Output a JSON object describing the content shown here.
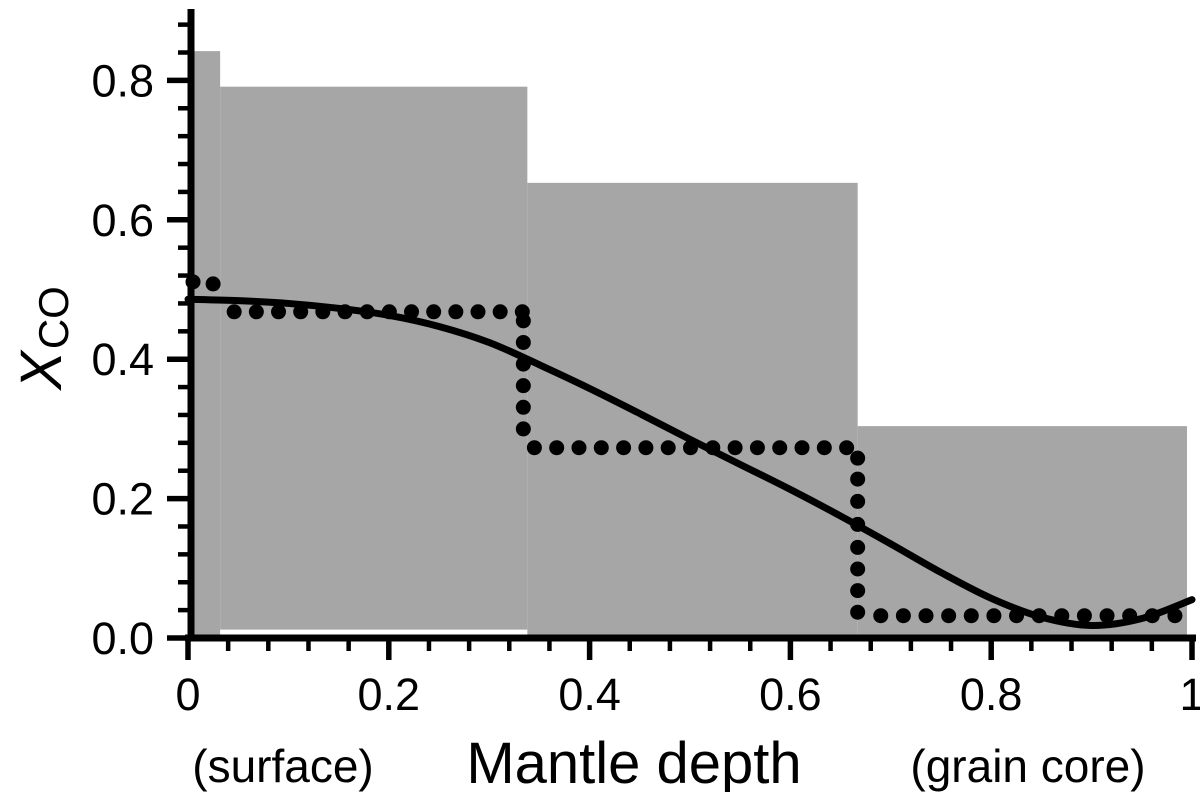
{
  "figure": {
    "background": "#ffffff",
    "colors": {
      "envelope_fill": "#a6a6a6",
      "curve": "#000000",
      "dots": "#000000",
      "axis": "#000000",
      "text": "#000000"
    }
  },
  "chart_data": {
    "type": "composite",
    "title": "",
    "xlabel": "Mantle depth",
    "xlabel_sub_left": "(surface)",
    "xlabel_sub_right": "(grain core)",
    "ylabel": "X_CO",
    "ylabel_main": "X",
    "ylabel_sub": "CO",
    "xlim": [
      0,
      1
    ],
    "ylim": [
      0,
      0.9
    ],
    "grid": false,
    "legend": "none",
    "x_ticks": {
      "values": [
        0,
        0.2,
        0.4,
        0.6,
        0.8,
        1
      ],
      "labels": [
        "0",
        "0.2",
        "0.4",
        "0.6",
        "0.8",
        "1"
      ],
      "minor_step": 0.04,
      "minor_max": 0.96
    },
    "y_ticks": {
      "values": [
        0,
        0.2,
        0.4,
        0.6,
        0.8
      ],
      "labels": [
        "0.0",
        "0.2",
        "0.4",
        "0.6",
        "0.8"
      ],
      "minor_step": 0.04,
      "minor_max": 0.88
    },
    "series": [
      {
        "name": "composition-envelope",
        "type": "step-area",
        "color": "#a6a6a6",
        "steps": [
          {
            "x0": 0.0,
            "x1": 0.032,
            "y_bottom": 0.0,
            "y_top": 0.842
          },
          {
            "x0": 0.032,
            "x1": 0.338,
            "y_bottom": 0.012,
            "y_top": 0.791
          },
          {
            "x0": 0.338,
            "x1": 0.667,
            "y_bottom": 0.0,
            "y_top": 0.653
          },
          {
            "x0": 0.667,
            "x1": 0.995,
            "y_bottom": 0.0,
            "y_top": 0.304
          }
        ]
      },
      {
        "name": "smooth-model-curve",
        "type": "line",
        "color": "#000000",
        "stroke_width": 7,
        "points": [
          [
            0.0,
            0.486
          ],
          [
            0.05,
            0.484
          ],
          [
            0.1,
            0.48
          ],
          [
            0.15,
            0.473
          ],
          [
            0.2,
            0.463
          ],
          [
            0.25,
            0.447
          ],
          [
            0.3,
            0.424
          ],
          [
            0.35,
            0.392
          ],
          [
            0.4,
            0.358
          ],
          [
            0.45,
            0.322
          ],
          [
            0.5,
            0.285
          ],
          [
            0.55,
            0.249
          ],
          [
            0.6,
            0.213
          ],
          [
            0.65,
            0.175
          ],
          [
            0.7,
            0.135
          ],
          [
            0.75,
            0.094
          ],
          [
            0.8,
            0.057
          ],
          [
            0.85,
            0.03
          ],
          [
            0.9,
            0.018
          ],
          [
            0.95,
            0.028
          ],
          [
            1.0,
            0.055
          ]
        ]
      },
      {
        "name": "discrete-step-profile",
        "type": "dotted-step",
        "color": "#000000",
        "dot_radius": 7.5,
        "dot_spacing_x": 0.0222,
        "leading_dots": [
          [
            0.005,
            0.511
          ],
          [
            0.025,
            0.508
          ]
        ],
        "levels": [
          {
            "y": 0.468,
            "x0": 0.046,
            "x1": 0.333
          },
          {
            "y": 0.273,
            "x0": 0.345,
            "x1": 0.656
          },
          {
            "y": 0.032,
            "x0": 0.69,
            "x1": 0.983
          }
        ],
        "risers": [
          {
            "x": 0.334,
            "ys": [
              0.455,
              0.424,
              0.393,
              0.362,
              0.331,
              0.3
            ]
          },
          {
            "x": 0.667,
            "ys": [
              0.258,
              0.228,
              0.196,
              0.163,
              0.13,
              0.099,
              0.068,
              0.037
            ]
          }
        ]
      }
    ]
  }
}
